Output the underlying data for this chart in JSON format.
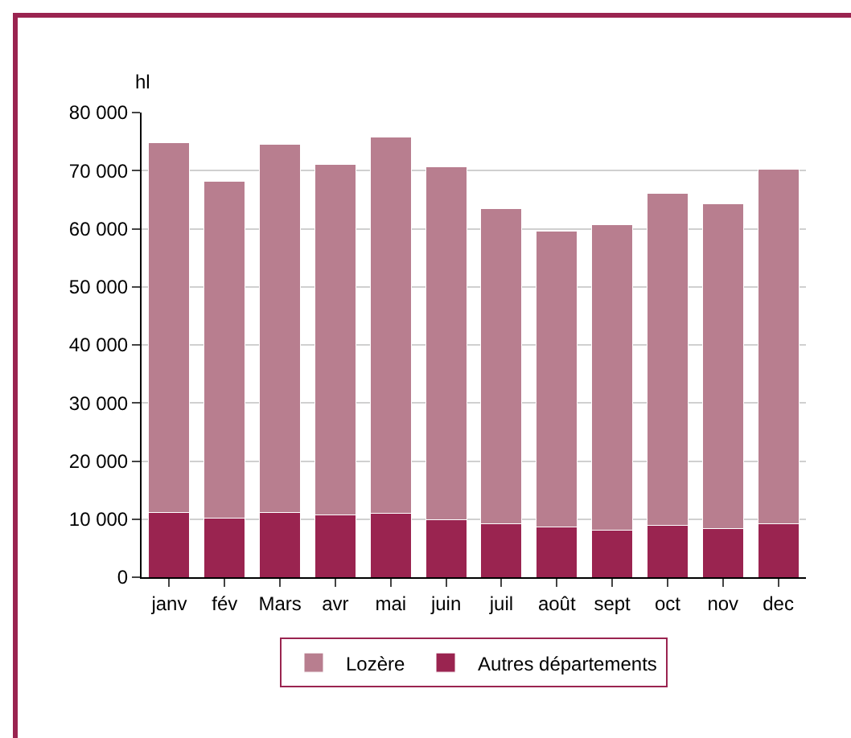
{
  "chart_data": {
    "type": "bar",
    "stacked": true,
    "ylabel": "hl",
    "categories": [
      "janv",
      "fév",
      "Mars",
      "avr",
      "mai",
      "juin",
      "juil",
      "août",
      "sept",
      "oct",
      "nov",
      "dec"
    ],
    "series": [
      {
        "name": "Autres départements",
        "color": "#9a2450",
        "values": [
          11200,
          10200,
          11200,
          10700,
          11000,
          9900,
          9200,
          8600,
          8100,
          8900,
          8400,
          9200
        ]
      },
      {
        "name": "Lozère",
        "color": "#b87e8f",
        "values": [
          63600,
          58000,
          63300,
          60400,
          64800,
          60700,
          54300,
          51000,
          52600,
          57200,
          55900,
          61100
        ]
      }
    ],
    "ylim": [
      0,
      80000
    ],
    "yticks": [
      0,
      {
        "value": 10000,
        "label": "10 000"
      },
      {
        "value": 20000,
        "label": "20 000"
      },
      {
        "value": 30000,
        "label": "30 000"
      },
      {
        "value": 40000,
        "label": "40 000"
      },
      {
        "value": 50000,
        "label": "50 000"
      },
      {
        "value": 60000,
        "label": "60 000"
      },
      {
        "value": 70000,
        "label": "70 000"
      },
      {
        "value": 80000,
        "label": "80 000"
      }
    ],
    "grid": "y",
    "legend": "bottom"
  }
}
